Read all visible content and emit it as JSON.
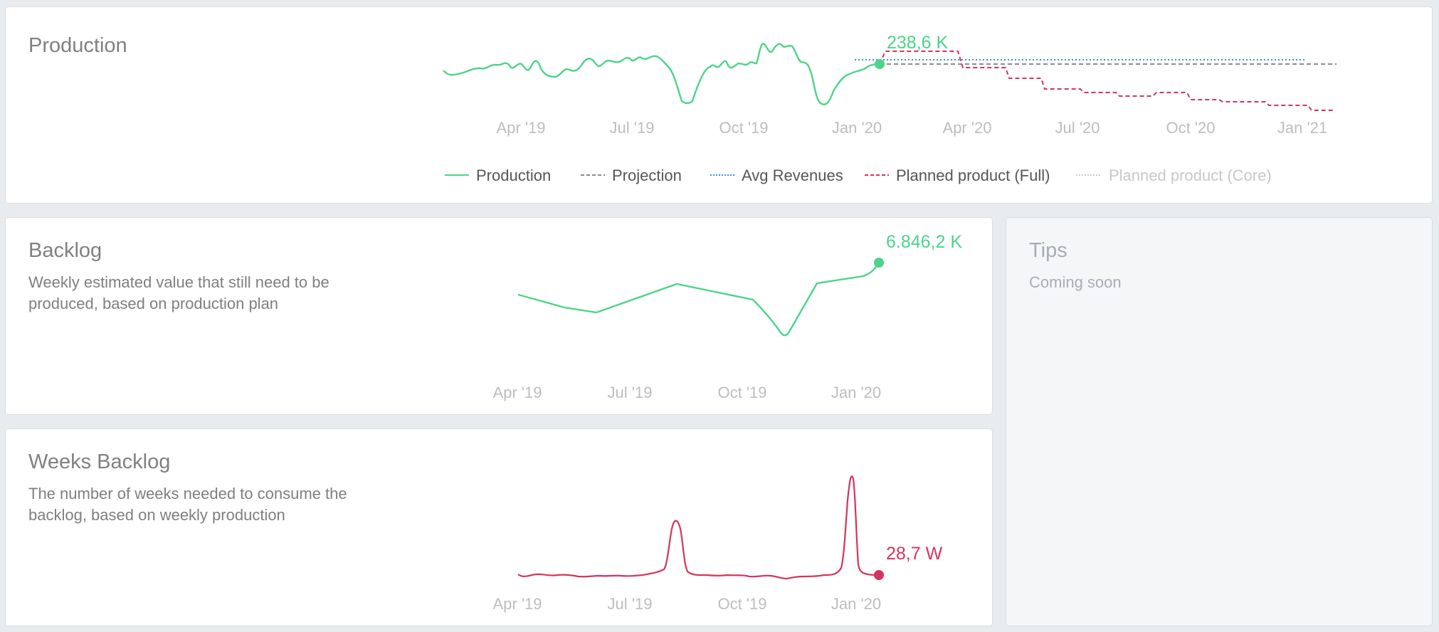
{
  "production": {
    "title": "Production",
    "last_value": "238,6 K",
    "ticks": [
      "Apr '19",
      "Jul '19",
      "Oct '19",
      "Jan '20",
      "Apr '20",
      "Jul '20",
      "Oct '20",
      "Jan '21"
    ],
    "legend": [
      {
        "label": "Production",
        "color": "#4cd488",
        "style": "solid"
      },
      {
        "label": "Projection",
        "color": "#8c8c8c",
        "style": "dashed"
      },
      {
        "label": "Avg Revenues",
        "color": "#3c8ee6",
        "style": "dotted"
      },
      {
        "label": "Planned product (Full)",
        "color": "#d6335d",
        "style": "dashed"
      },
      {
        "label": "Planned product (Core)",
        "color": "#c8c8c8",
        "style": "dotted"
      }
    ]
  },
  "backlog": {
    "title": "Backlog",
    "description": "Weekly estimated value that still need to be produced, based on production plan",
    "last_value": "6.846,2 K",
    "ticks": [
      "Apr '19",
      "Jul '19",
      "Oct '19",
      "Jan '20"
    ]
  },
  "weeks_backlog": {
    "title": "Weeks Backlog",
    "description": "The number of weeks needed to consume the backlog, based on weekly production",
    "last_value": "28,7 W",
    "ticks": [
      "Apr '19",
      "Jul '19",
      "Oct '19",
      "Jan '20"
    ]
  },
  "tips": {
    "title": "Tips",
    "description": "Coming soon"
  },
  "colors": {
    "green": "#4cd488",
    "red": "#d6335d",
    "gray": "#8c8c8c",
    "blue": "#3c8ee6"
  },
  "chart_data": [
    {
      "type": "line",
      "title": "Production",
      "x_ticks": [
        "Apr '19",
        "Jul '19",
        "Oct '19",
        "Jan '20",
        "Apr '20",
        "Jul '20",
        "Oct '20",
        "Jan '21"
      ],
      "series": [
        {
          "name": "Production",
          "last_value_label": "238,6 K"
        },
        {
          "name": "Projection"
        },
        {
          "name": "Avg Revenues"
        },
        {
          "name": "Planned product (Full)"
        },
        {
          "name": "Planned product (Core)"
        }
      ],
      "legend_position": "bottom"
    },
    {
      "type": "line",
      "title": "Backlog",
      "x_ticks": [
        "Apr '19",
        "Jul '19",
        "Oct '19",
        "Jan '20"
      ],
      "series": [
        {
          "last_value_label": "6.846,2 K"
        }
      ]
    },
    {
      "type": "line",
      "title": "Weeks Backlog",
      "x_ticks": [
        "Apr '19",
        "Jul '19",
        "Oct '19",
        "Jan '20"
      ],
      "series": [
        {
          "last_value_label": "28,7 W"
        }
      ]
    }
  ]
}
